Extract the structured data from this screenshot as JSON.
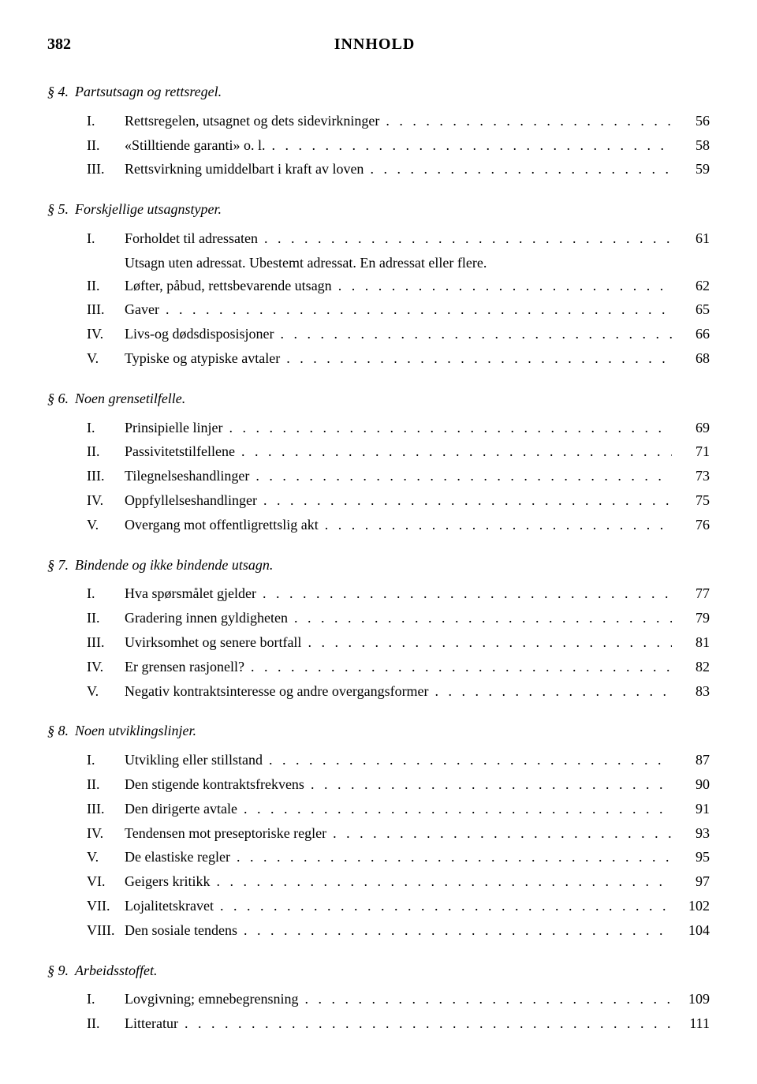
{
  "header": {
    "pageNumber": "382",
    "title": "INNHOLD"
  },
  "sections": [
    {
      "num": "§ 4.",
      "title": "Partsutsagn og rettsregel.",
      "entries": [
        {
          "num": "I.",
          "text": "Rettsregelen, utsagnet og dets sidevirkninger",
          "page": "56"
        },
        {
          "num": "II.",
          "text": "«Stilltiende garanti» o. l.",
          "page": "58"
        },
        {
          "num": "III.",
          "text": "Rettsvirkning umiddelbart i kraft av loven",
          "page": "59"
        }
      ]
    },
    {
      "num": "§ 5.",
      "title": "Forskjellige utsagnstyper.",
      "entries": [
        {
          "num": "I.",
          "text": "Forholdet til adressaten",
          "page": "61",
          "continuation": "Utsagn uten adressat. Ubestemt adressat. En adressat eller flere."
        },
        {
          "num": "II.",
          "text": "Løfter, påbud, rettsbevarende utsagn",
          "page": "62"
        },
        {
          "num": "III.",
          "text": "Gaver",
          "page": "65"
        },
        {
          "num": "IV.",
          "text": "Livs-og dødsdisposisjoner",
          "page": "66"
        },
        {
          "num": "V.",
          "text": "Typiske og atypiske avtaler",
          "page": "68"
        }
      ]
    },
    {
      "num": "§ 6.",
      "title": "Noen grensetilfelle.",
      "entries": [
        {
          "num": "I.",
          "text": "Prinsipielle linjer",
          "page": "69"
        },
        {
          "num": "II.",
          "text": "Passivitetstilfellene",
          "page": "71"
        },
        {
          "num": "III.",
          "text": "Tilegnelseshandlinger",
          "page": "73"
        },
        {
          "num": "IV.",
          "text": "Oppfyllelseshandlinger",
          "page": "75"
        },
        {
          "num": "V.",
          "text": "Overgang mot offentligrettslig akt",
          "page": "76"
        }
      ]
    },
    {
      "num": "§ 7.",
      "title": "Bindende og ikke bindende utsagn.",
      "entries": [
        {
          "num": "I.",
          "text": "Hva spørsmålet gjelder",
          "page": "77"
        },
        {
          "num": "II.",
          "text": "Gradering innen gyldigheten",
          "page": "79"
        },
        {
          "num": "III.",
          "text": "Uvirksomhet og senere bortfall",
          "page": "81"
        },
        {
          "num": "IV.",
          "text": "Er grensen rasjonell?",
          "page": "82"
        },
        {
          "num": "V.",
          "text": "Negativ kontraktsinteresse og andre overgangsformer",
          "page": "83"
        }
      ]
    },
    {
      "num": "§ 8.",
      "title": "Noen utviklingslinjer.",
      "entries": [
        {
          "num": "I.",
          "text": "Utvikling eller stillstand",
          "page": "87"
        },
        {
          "num": "II.",
          "text": "Den stigende kontraktsfrekvens",
          "page": "90"
        },
        {
          "num": "III.",
          "text": "Den dirigerte avtale",
          "page": "91"
        },
        {
          "num": "IV.",
          "text": "Tendensen mot preseptoriske regler",
          "page": "93"
        },
        {
          "num": "V.",
          "text": "De elastiske regler",
          "page": "95"
        },
        {
          "num": "VI.",
          "text": "Geigers kritikk",
          "page": "97"
        },
        {
          "num": "VII.",
          "text": "Lojalitetskravet",
          "page": "102"
        },
        {
          "num": "VIII.",
          "text": "Den sosiale tendens",
          "page": "104"
        }
      ]
    },
    {
      "num": "§ 9.",
      "title": "Arbeidsstoffet.",
      "entries": [
        {
          "num": "I.",
          "text": "Lovgivning; emnebegrensning",
          "page": "109"
        },
        {
          "num": "II.",
          "text": "Litteratur",
          "page": "111"
        }
      ]
    }
  ]
}
